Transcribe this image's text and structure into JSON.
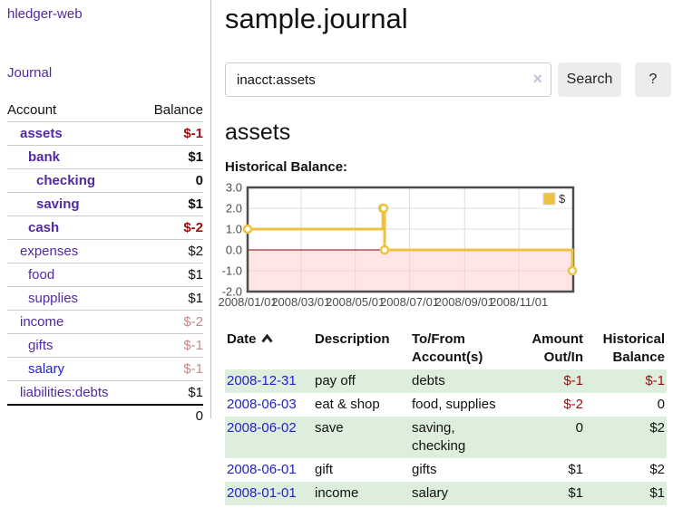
{
  "app": {
    "brand": "hledger-web"
  },
  "colors": {
    "purple_link": "#5229a3",
    "blue_link": "#2222cc",
    "negative_strong": "#a00d0d",
    "negative_soft": "#c48a89",
    "row_green": "#ddeedd",
    "button_bg": "#ececec",
    "chart_line": "#EDC240",
    "chart_border": "#4d4d4d",
    "chart_grid": "#dddddd",
    "chart_negative_region": "#ffcccc",
    "chart_zero_line": "#8b0000"
  },
  "sidebar": {
    "journal_link": "Journal",
    "accounts_header": {
      "account": "Account",
      "balance": "Balance"
    },
    "accounts": [
      {
        "name": "assets",
        "depth": 1,
        "balance": "$-1",
        "bold": true,
        "neg": "strong"
      },
      {
        "name": "bank",
        "depth": 2,
        "balance": "$1",
        "bold": true,
        "neg": null
      },
      {
        "name": "checking",
        "depth": 3,
        "balance": "0",
        "bold": true,
        "neg": null
      },
      {
        "name": "saving",
        "depth": 3,
        "balance": "$1",
        "bold": true,
        "neg": null
      },
      {
        "name": "cash",
        "depth": 2,
        "balance": "$-2",
        "bold": true,
        "neg": "strong"
      },
      {
        "name": "expenses",
        "depth": 1,
        "balance": "$2",
        "bold": false,
        "neg": null
      },
      {
        "name": "food",
        "depth": 2,
        "balance": "$1",
        "bold": false,
        "neg": null
      },
      {
        "name": "supplies",
        "depth": 2,
        "balance": "$1",
        "bold": false,
        "neg": null
      },
      {
        "name": "income",
        "depth": 1,
        "balance": "$-2",
        "bold": false,
        "neg": "soft"
      },
      {
        "name": "gifts",
        "depth": 2,
        "balance": "$-1",
        "bold": false,
        "neg": "soft"
      },
      {
        "name": "salary",
        "depth": 2,
        "balance": "$-1",
        "bold": false,
        "neg": "soft",
        "blue": true
      },
      {
        "name": "liabilities:debts",
        "depth": 1,
        "balance": "$1",
        "bold": false,
        "neg": null
      }
    ],
    "total": "0"
  },
  "header": {
    "title": "sample.journal"
  },
  "search": {
    "value": "inacct:assets",
    "clear_icon": "×",
    "button": "Search",
    "help_button": "?"
  },
  "account_page": {
    "heading": "assets",
    "chart_label": "Historical Balance:"
  },
  "chart_data": {
    "type": "line",
    "title": "Historical Balance of assets",
    "step": true,
    "series": [
      {
        "name": "$",
        "color": "#EDC240",
        "points": [
          [
            "2008-01-01",
            1
          ],
          [
            "2008-06-01",
            2
          ],
          [
            "2008-06-02",
            2
          ],
          [
            "2008-06-03",
            0
          ],
          [
            "2008-12-31",
            -1
          ]
        ]
      }
    ],
    "xlim": [
      "2008-01-01",
      "2009-01-01"
    ],
    "ylim": [
      -2,
      3
    ],
    "x_ticks": [
      "2008/01/01",
      "2008/03/01",
      "2008/05/01",
      "2008/07/01",
      "2008/09/01",
      "2008/11/01"
    ],
    "y_ticks": [
      3.0,
      2.0,
      1.0,
      0.0,
      -1.0,
      -2.0
    ],
    "grid": true,
    "legend_position": "top-right"
  },
  "register": {
    "columns": {
      "date": "Date",
      "description": "Description",
      "accounts": "To/From Account(s)",
      "amount": "Amount Out/In",
      "balance": "Historical Balance"
    },
    "sort": "date-ascending",
    "rows": [
      {
        "date": "2008-12-31",
        "description": "pay off",
        "accounts": "debts",
        "amount": "$-1",
        "balance": "$-1"
      },
      {
        "date": "2008-06-03",
        "description": "eat & shop",
        "accounts": "food, supplies",
        "amount": "$-2",
        "balance": "0"
      },
      {
        "date": "2008-06-02",
        "description": "save",
        "accounts": "saving, checking",
        "amount": "0",
        "balance": "$2"
      },
      {
        "date": "2008-06-01",
        "description": "gift",
        "accounts": "gifts",
        "amount": "$1",
        "balance": "$2"
      },
      {
        "date": "2008-01-01",
        "description": "income",
        "accounts": "salary",
        "amount": "$1",
        "balance": "$1"
      }
    ]
  }
}
